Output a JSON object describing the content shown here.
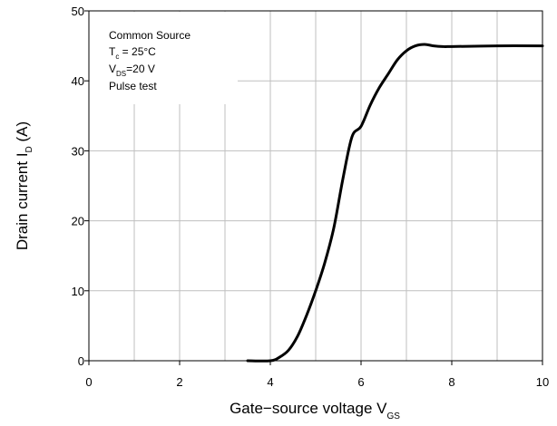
{
  "chart_data": {
    "type": "line",
    "title": "",
    "xlabel": {
      "main": "Gate−source voltage V",
      "sub": "GS"
    },
    "ylabel": {
      "main": "Drain current I",
      "sub": "D",
      "tail": " (A)"
    },
    "xlim": [
      0,
      10
    ],
    "ylim": [
      0,
      50
    ],
    "x_ticks": [
      0,
      2,
      4,
      6,
      8,
      10
    ],
    "y_ticks": [
      0,
      10,
      20,
      30,
      40,
      50
    ],
    "x_tick_labels": [
      "0",
      "2",
      "4",
      "6",
      "8",
      "10"
    ],
    "y_tick_labels": [
      "0",
      "10",
      "20",
      "30",
      "40",
      "50"
    ],
    "grid": true,
    "annotation": {
      "line1": "Common Source",
      "line2_main": "T",
      "line2_sub": "c",
      "line2_tail": " = 25°C",
      "line3_main": "V",
      "line3_sub": "DS",
      "line3_tail": "=20 V",
      "line4": "Pulse test"
    },
    "series": [
      {
        "x": [
          3.5,
          4.0,
          4.2,
          4.4,
          4.6,
          4.8,
          5.0,
          5.2,
          5.4,
          5.6,
          5.8,
          6.0,
          6.2,
          6.4,
          6.6,
          6.8,
          7.0,
          7.2,
          7.4,
          7.6,
          7.8,
          8.0,
          9.0,
          10.0
        ],
        "y": [
          0.0,
          0.0,
          0.5,
          1.5,
          3.5,
          6.5,
          10.0,
          14.0,
          19.0,
          26.0,
          32.0,
          33.5,
          36.5,
          39.0,
          41.0,
          43.0,
          44.3,
          45.0,
          45.2,
          45.0,
          44.9,
          44.9,
          45.0,
          45.0
        ],
        "color": "#000000"
      }
    ]
  }
}
